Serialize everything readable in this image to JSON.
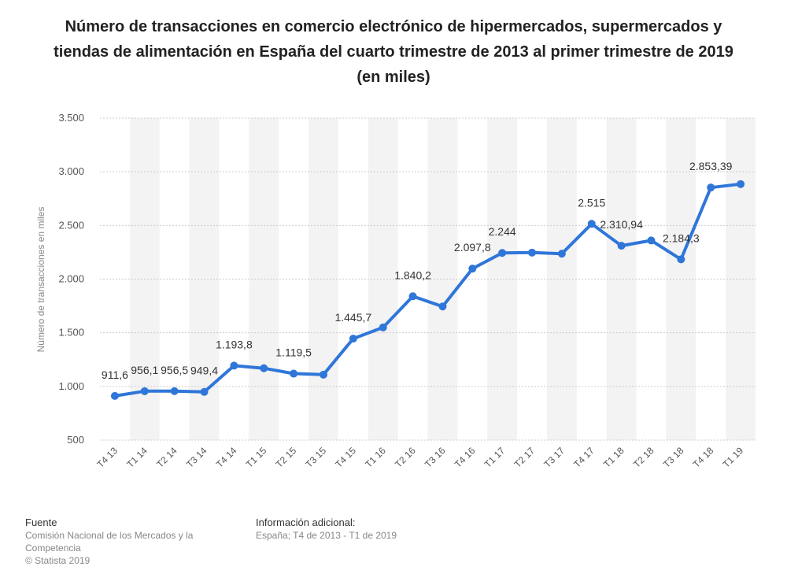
{
  "title": "Número de transacciones en comercio electrónico de hipermercados, supermercados y tiendas de alimentación en España del cuarto trimestre de 2013 al primer trimestre de 2019 (en miles)",
  "footer": {
    "source_label": "Fuente",
    "source_text": "Comisión Nacional de los Mercados y la Competencia",
    "copyright": "© Statista 2019",
    "info_label": "Información adicional:",
    "info_text": "España; T4 de 2013 - T1 de 2019"
  },
  "chart_data": {
    "type": "line",
    "title": "Número de transacciones en comercio electrónico de hipermercados, supermercados y tiendas de alimentación en España del cuarto trimestre de 2013 al primer trimestre de 2019 (en miles)",
    "xlabel": "",
    "ylabel": "Número de transacciones en miles",
    "ylim": [
      500,
      3500
    ],
    "yticks": [
      500,
      1000,
      1500,
      2000,
      2500,
      3000,
      3500
    ],
    "ytick_labels": [
      "500",
      "1.000",
      "1.500",
      "2.000",
      "2.500",
      "3.000",
      "3.500"
    ],
    "categories": [
      "T4 13",
      "T1 14",
      "T2 14",
      "T3 14",
      "T4 14",
      "T1 15",
      "T2 15",
      "T3 15",
      "T4 15",
      "T1 16",
      "T2 16",
      "T3 16",
      "T4 16",
      "T1 17",
      "T2 17",
      "T3 17",
      "T4 17",
      "T1 18",
      "T2 18",
      "T3 18",
      "T4 18",
      "T1 19"
    ],
    "values": [
      911.6,
      956.1,
      956.5,
      949.4,
      1193.8,
      1170,
      1119.5,
      1110,
      1445.7,
      1550,
      1840.2,
      1745,
      2097.8,
      2244,
      2247,
      2237,
      2515,
      2310.94,
      2360,
      2184.3,
      2853.39,
      2885
    ],
    "data_labels": [
      "911,6",
      "956,1",
      "956,5",
      "949,4",
      "1.193,8",
      "",
      "1.119,5",
      "",
      "1.445,7",
      "",
      "1.840,2",
      "",
      "2.097,8",
      "2.244",
      "",
      "",
      "2.515",
      "2.310,94",
      "",
      "2.184,3",
      "2.853,39",
      ""
    ],
    "line_color": "#2f76d9",
    "grid": true,
    "legend": "none"
  }
}
